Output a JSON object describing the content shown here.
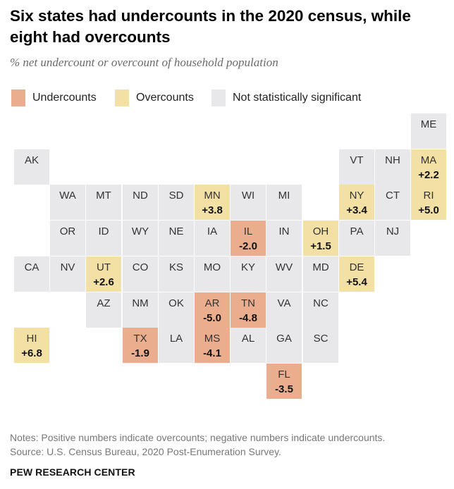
{
  "header": {
    "title": "Six states had undercounts in the 2020 census, while eight had overcounts",
    "subtitle": "% net undercount or overcount of household population"
  },
  "legend": [
    {
      "key": "under",
      "label": "Undercounts",
      "color": "#eaad8e"
    },
    {
      "key": "over",
      "label": "Overcounts",
      "color": "#f2e0a4"
    },
    {
      "key": "ns",
      "label": "Not statistically significant",
      "color": "#e8e8ea"
    }
  ],
  "colors": {
    "under": "#eaad8e",
    "over": "#f2e0a4",
    "ns": "#e8e8ea"
  },
  "states": [
    {
      "abbr": "ME",
      "row": 0,
      "col": 11,
      "status": "ns",
      "value": ""
    },
    {
      "abbr": "AK",
      "row": 1,
      "col": 0,
      "status": "ns",
      "value": ""
    },
    {
      "abbr": "VT",
      "row": 1,
      "col": 9,
      "status": "ns",
      "value": ""
    },
    {
      "abbr": "NH",
      "row": 1,
      "col": 10,
      "status": "ns",
      "value": ""
    },
    {
      "abbr": "MA",
      "row": 1,
      "col": 11,
      "status": "over",
      "value": "+2.2"
    },
    {
      "abbr": "WA",
      "row": 2,
      "col": 1,
      "status": "ns",
      "value": ""
    },
    {
      "abbr": "MT",
      "row": 2,
      "col": 2,
      "status": "ns",
      "value": ""
    },
    {
      "abbr": "ND",
      "row": 2,
      "col": 3,
      "status": "ns",
      "value": ""
    },
    {
      "abbr": "SD",
      "row": 2,
      "col": 4,
      "status": "ns",
      "value": ""
    },
    {
      "abbr": "MN",
      "row": 2,
      "col": 5,
      "status": "over",
      "value": "+3.8"
    },
    {
      "abbr": "WI",
      "row": 2,
      "col": 6,
      "status": "ns",
      "value": ""
    },
    {
      "abbr": "MI",
      "row": 2,
      "col": 7,
      "status": "ns",
      "value": ""
    },
    {
      "abbr": "NY",
      "row": 2,
      "col": 9,
      "status": "over",
      "value": "+3.4"
    },
    {
      "abbr": "CT",
      "row": 2,
      "col": 10,
      "status": "ns",
      "value": ""
    },
    {
      "abbr": "RI",
      "row": 2,
      "col": 11,
      "status": "over",
      "value": "+5.0"
    },
    {
      "abbr": "OR",
      "row": 3,
      "col": 1,
      "status": "ns",
      "value": ""
    },
    {
      "abbr": "ID",
      "row": 3,
      "col": 2,
      "status": "ns",
      "value": ""
    },
    {
      "abbr": "WY",
      "row": 3,
      "col": 3,
      "status": "ns",
      "value": ""
    },
    {
      "abbr": "NE",
      "row": 3,
      "col": 4,
      "status": "ns",
      "value": ""
    },
    {
      "abbr": "IA",
      "row": 3,
      "col": 5,
      "status": "ns",
      "value": ""
    },
    {
      "abbr": "IL",
      "row": 3,
      "col": 6,
      "status": "under",
      "value": "-2.0"
    },
    {
      "abbr": "IN",
      "row": 3,
      "col": 7,
      "status": "ns",
      "value": ""
    },
    {
      "abbr": "OH",
      "row": 3,
      "col": 8,
      "status": "over",
      "value": "+1.5"
    },
    {
      "abbr": "PA",
      "row": 3,
      "col": 9,
      "status": "ns",
      "value": ""
    },
    {
      "abbr": "NJ",
      "row": 3,
      "col": 10,
      "status": "ns",
      "value": ""
    },
    {
      "abbr": "CA",
      "row": 4,
      "col": 0,
      "status": "ns",
      "value": ""
    },
    {
      "abbr": "NV",
      "row": 4,
      "col": 1,
      "status": "ns",
      "value": ""
    },
    {
      "abbr": "UT",
      "row": 4,
      "col": 2,
      "status": "over",
      "value": "+2.6"
    },
    {
      "abbr": "CO",
      "row": 4,
      "col": 3,
      "status": "ns",
      "value": ""
    },
    {
      "abbr": "KS",
      "row": 4,
      "col": 4,
      "status": "ns",
      "value": ""
    },
    {
      "abbr": "MO",
      "row": 4,
      "col": 5,
      "status": "ns",
      "value": ""
    },
    {
      "abbr": "KY",
      "row": 4,
      "col": 6,
      "status": "ns",
      "value": ""
    },
    {
      "abbr": "WV",
      "row": 4,
      "col": 7,
      "status": "ns",
      "value": ""
    },
    {
      "abbr": "MD",
      "row": 4,
      "col": 8,
      "status": "ns",
      "value": ""
    },
    {
      "abbr": "DE",
      "row": 4,
      "col": 9,
      "status": "over",
      "value": "+5.4"
    },
    {
      "abbr": "AZ",
      "row": 5,
      "col": 2,
      "status": "ns",
      "value": ""
    },
    {
      "abbr": "NM",
      "row": 5,
      "col": 3,
      "status": "ns",
      "value": ""
    },
    {
      "abbr": "OK",
      "row": 5,
      "col": 4,
      "status": "ns",
      "value": ""
    },
    {
      "abbr": "AR",
      "row": 5,
      "col": 5,
      "status": "under",
      "value": "-5.0"
    },
    {
      "abbr": "TN",
      "row": 5,
      "col": 6,
      "status": "under",
      "value": "-4.8"
    },
    {
      "abbr": "VA",
      "row": 5,
      "col": 7,
      "status": "ns",
      "value": ""
    },
    {
      "abbr": "NC",
      "row": 5,
      "col": 8,
      "status": "ns",
      "value": ""
    },
    {
      "abbr": "HI",
      "row": 6,
      "col": 0,
      "status": "over",
      "value": "+6.8"
    },
    {
      "abbr": "TX",
      "row": 6,
      "col": 3,
      "status": "under",
      "value": "-1.9"
    },
    {
      "abbr": "LA",
      "row": 6,
      "col": 4,
      "status": "ns",
      "value": ""
    },
    {
      "abbr": "MS",
      "row": 6,
      "col": 5,
      "status": "under",
      "value": "-4.1"
    },
    {
      "abbr": "AL",
      "row": 6,
      "col": 6,
      "status": "ns",
      "value": ""
    },
    {
      "abbr": "GA",
      "row": 6,
      "col": 7,
      "status": "ns",
      "value": ""
    },
    {
      "abbr": "SC",
      "row": 6,
      "col": 8,
      "status": "ns",
      "value": ""
    },
    {
      "abbr": "FL",
      "row": 7,
      "col": 7,
      "status": "under",
      "value": "-3.5"
    }
  ],
  "footer": {
    "notes": "Notes: Positive numbers indicate overcounts; negative numbers indicate undercounts.",
    "source": "Source: U.S. Census Bureau, 2020 Post-Enumeration Survey.",
    "brand": "PEW RESEARCH CENTER"
  }
}
